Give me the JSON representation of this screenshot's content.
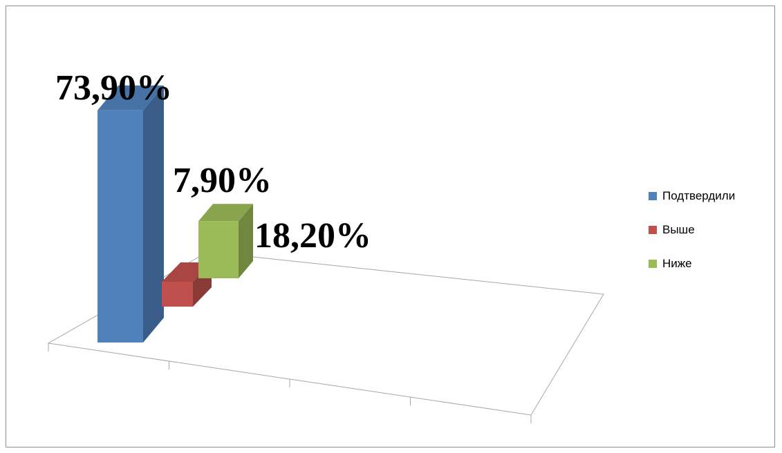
{
  "chart_data": {
    "type": "bar",
    "subtype": "3d-clustered-column",
    "title": "",
    "xlabel": "",
    "ylabel": "",
    "categories": [
      ""
    ],
    "series": [
      {
        "name": "Подтвердили",
        "values": [
          73.9
        ],
        "label": "73,90%",
        "color": "#4f81bd"
      },
      {
        "name": "Выше",
        "values": [
          7.9
        ],
        "label": "7,90%",
        "color": "#c0504d"
      },
      {
        "name": "Ниже",
        "values": [
          18.2
        ],
        "label": "18,20%",
        "color": "#9bbb59"
      }
    ],
    "ylim": [
      0,
      100
    ],
    "grid": false,
    "legend_position": "right"
  }
}
